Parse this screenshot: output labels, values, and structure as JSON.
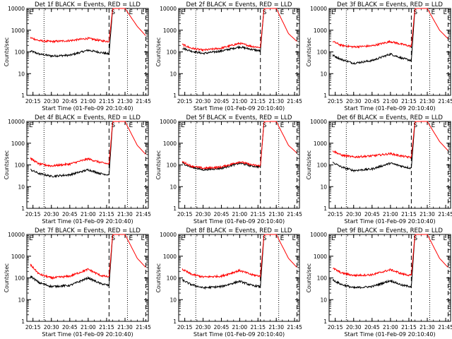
{
  "figure": {
    "ylabel": "Counts/sec",
    "xlabel": "Start Time (01-Feb-09 20:10:40)",
    "x_tick_labels": [
      "20:15",
      "20:30",
      "20:45",
      "21:00",
      "21:15",
      "21:30",
      "21:45"
    ],
    "y_tick_labels": [
      "1",
      "10",
      "100",
      "1000",
      "10000"
    ],
    "marker_labels": [
      "E",
      "S",
      "E",
      "L"
    ],
    "colors": {
      "events": "#000000",
      "lld": "#ff0000"
    }
  },
  "chart_data": [
    {
      "type": "line",
      "title": "Det 1f BLACK = Events, RED = LLD",
      "xlabel": "Start Time (01-Feb-09 20:10:40)",
      "ylabel": "Counts/sec",
      "xlim": [
        "20:10",
        "21:49"
      ],
      "ylim": [
        1,
        10000
      ],
      "yscale": "log",
      "x": [
        "20:13",
        "20:20",
        "20:30",
        "20:45",
        "21:00",
        "21:10",
        "21:17",
        "21:20",
        "21:30",
        "21:40",
        "21:47"
      ],
      "series": [
        {
          "name": "Events",
          "color": "#000000",
          "values": [
            110,
            80,
            65,
            70,
            120,
            95,
            80,
            10000,
            10000,
            10000,
            null
          ]
        },
        {
          "name": "LLD",
          "color": "#ff0000",
          "values": [
            450,
            330,
            300,
            330,
            420,
            330,
            300,
            10000,
            10000,
            1500,
            550
          ]
        }
      ]
    },
    {
      "type": "line",
      "title": "Det 2f BLACK = Events, RED = LLD",
      "xlabel": "Start Time (01-Feb-09 20:10:40)",
      "ylabel": "Counts/sec",
      "xlim": [
        "20:10",
        "21:49"
      ],
      "ylim": [
        1,
        10000
      ],
      "yscale": "log",
      "x": [
        "20:13",
        "20:20",
        "20:30",
        "20:45",
        "21:00",
        "21:10",
        "21:17",
        "21:20",
        "21:30",
        "21:40",
        "21:47"
      ],
      "series": [
        {
          "name": "Events",
          "color": "#000000",
          "values": [
            150,
            110,
            85,
            110,
            170,
            130,
            110,
            10000,
            10000,
            10000,
            null
          ]
        },
        {
          "name": "LLD",
          "color": "#ff0000",
          "values": [
            220,
            150,
            120,
            150,
            250,
            180,
            160,
            10000,
            10000,
            700,
            300
          ]
        }
      ]
    },
    {
      "type": "line",
      "title": "Det 3f BLACK = Events, RED = LLD",
      "xlabel": "Start Time (01-Feb-09 20:10:40)",
      "ylabel": "Counts/sec",
      "xlim": [
        "20:10",
        "21:49"
      ],
      "ylim": [
        1,
        10000
      ],
      "yscale": "log",
      "x": [
        "20:13",
        "20:20",
        "20:30",
        "20:45",
        "21:00",
        "21:10",
        "21:17",
        "21:20",
        "21:30",
        "21:40",
        "21:47"
      ],
      "series": [
        {
          "name": "Events",
          "color": "#000000",
          "values": [
            70,
            45,
            30,
            40,
            80,
            50,
            40,
            10000,
            10000,
            10000,
            null
          ]
        },
        {
          "name": "LLD",
          "color": "#ff0000",
          "values": [
            300,
            200,
            170,
            190,
            300,
            220,
            180,
            10000,
            10000,
            1000,
            400
          ]
        }
      ]
    },
    {
      "type": "line",
      "title": "Det 4f BLACK = Events, RED = LLD",
      "xlabel": "Start Time (01-Feb-09 20:10:40)",
      "ylabel": "Counts/sec",
      "xlim": [
        "20:10",
        "21:49"
      ],
      "ylim": [
        1,
        10000
      ],
      "yscale": "log",
      "x": [
        "20:13",
        "20:20",
        "20:30",
        "20:45",
        "21:00",
        "21:10",
        "21:17",
        "21:20",
        "21:30",
        "21:40",
        "21:47"
      ],
      "series": [
        {
          "name": "Events",
          "color": "#000000",
          "values": [
            60,
            40,
            30,
            35,
            60,
            40,
            35,
            10000,
            10000,
            10000,
            null
          ]
        },
        {
          "name": "LLD",
          "color": "#ff0000",
          "values": [
            200,
            110,
            90,
            110,
            190,
            130,
            110,
            10000,
            10000,
            800,
            300
          ]
        }
      ]
    },
    {
      "type": "line",
      "title": "Det 5f BLACK = Events, RED = LLD",
      "xlabel": "Start Time (01-Feb-09 20:10:40)",
      "ylabel": "Counts/sec",
      "xlim": [
        "20:10",
        "21:49"
      ],
      "ylim": [
        1,
        10000
      ],
      "yscale": "log",
      "x": [
        "20:13",
        "20:20",
        "20:30",
        "20:45",
        "21:00",
        "21:10",
        "21:17",
        "21:20",
        "21:30",
        "21:40",
        "21:47"
      ],
      "series": [
        {
          "name": "Events",
          "color": "#000000",
          "values": [
            120,
            80,
            60,
            70,
            120,
            90,
            80,
            10000,
            10000,
            10000,
            null
          ]
        },
        {
          "name": "LLD",
          "color": "#ff0000",
          "values": [
            140,
            90,
            70,
            80,
            140,
            100,
            90,
            10000,
            10000,
            800,
            350
          ]
        }
      ]
    },
    {
      "type": "line",
      "title": "Det 6f BLACK = Events, RED = LLD",
      "xlabel": "Start Time (01-Feb-09 20:10:40)",
      "ylabel": "Counts/sec",
      "xlim": [
        "20:10",
        "21:49"
      ],
      "ylim": [
        1,
        10000
      ],
      "yscale": "log",
      "x": [
        "20:13",
        "20:20",
        "20:30",
        "20:45",
        "21:00",
        "21:10",
        "21:17",
        "21:20",
        "21:30",
        "21:40",
        "21:47"
      ],
      "series": [
        {
          "name": "Events",
          "color": "#000000",
          "values": [
            130,
            80,
            55,
            65,
            120,
            85,
            70,
            10000,
            10000,
            10000,
            null
          ]
        },
        {
          "name": "LLD",
          "color": "#ff0000",
          "values": [
            450,
            280,
            230,
            260,
            330,
            250,
            220,
            10000,
            10000,
            1200,
            450
          ]
        }
      ]
    },
    {
      "type": "line",
      "title": "Det 7f BLACK = Events, RED = LLD",
      "xlabel": "Start Time (01-Feb-09 20:10:40)",
      "ylabel": "Counts/sec",
      "xlim": [
        "20:10",
        "21:49"
      ],
      "ylim": [
        1,
        10000
      ],
      "yscale": "log",
      "x": [
        "20:13",
        "20:20",
        "20:30",
        "20:45",
        "21:00",
        "21:10",
        "21:17",
        "21:20",
        "21:30",
        "21:40",
        "21:47"
      ],
      "series": [
        {
          "name": "Events",
          "color": "#000000",
          "values": [
            120,
            60,
            40,
            45,
            100,
            55,
            45,
            10000,
            10000,
            10000,
            null
          ]
        },
        {
          "name": "LLD",
          "color": "#ff0000",
          "values": [
            400,
            150,
            100,
            120,
            250,
            130,
            110,
            10000,
            10000,
            800,
            300
          ]
        }
      ]
    },
    {
      "type": "line",
      "title": "Det 8f BLACK = Events, RED = LLD",
      "xlabel": "Start Time (01-Feb-09 20:10:40)",
      "ylabel": "Counts/sec",
      "xlim": [
        "20:10",
        "21:49"
      ],
      "ylim": [
        1,
        10000
      ],
      "yscale": "log",
      "x": [
        "20:13",
        "20:20",
        "20:30",
        "20:45",
        "21:00",
        "21:10",
        "21:17",
        "21:20",
        "21:30",
        "21:40",
        "21:47"
      ],
      "series": [
        {
          "name": "Events",
          "color": "#000000",
          "values": [
            80,
            50,
            35,
            40,
            70,
            45,
            40,
            10000,
            10000,
            10000,
            null
          ]
        },
        {
          "name": "LLD",
          "color": "#ff0000",
          "values": [
            250,
            150,
            110,
            120,
            220,
            140,
            120,
            10000,
            10000,
            800,
            300
          ]
        }
      ]
    },
    {
      "type": "line",
      "title": "Det 9f BLACK = Events, RED = LLD",
      "xlabel": "Start Time (01-Feb-09 20:10:40)",
      "ylabel": "Counts/sec",
      "xlim": [
        "20:10",
        "21:49"
      ],
      "ylim": [
        1,
        10000
      ],
      "yscale": "log",
      "x": [
        "20:13",
        "20:20",
        "20:30",
        "20:45",
        "21:00",
        "21:10",
        "21:17",
        "21:20",
        "21:30",
        "21:40",
        "21:47"
      ],
      "series": [
        {
          "name": "Events",
          "color": "#000000",
          "values": [
            80,
            50,
            35,
            40,
            75,
            45,
            40,
            10000,
            10000,
            10000,
            null
          ]
        },
        {
          "name": "LLD",
          "color": "#ff0000",
          "values": [
            280,
            170,
            130,
            140,
            240,
            150,
            130,
            10000,
            10000,
            800,
            300
          ]
        }
      ]
    }
  ]
}
